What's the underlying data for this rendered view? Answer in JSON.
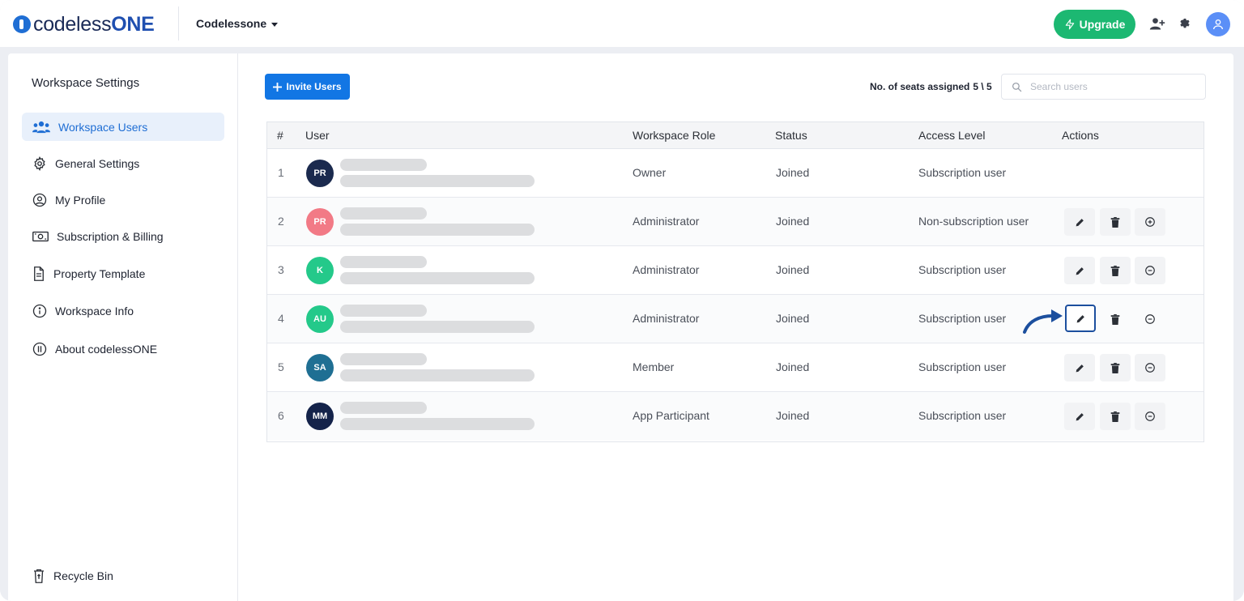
{
  "header": {
    "logo_light": "codeless",
    "logo_bold": "ONE",
    "workspace_name": "Codelessone",
    "upgrade_label": "Upgrade",
    "icons": [
      "add-user-icon",
      "gear-icon",
      "user-avatar-icon"
    ]
  },
  "sidebar": {
    "title": "Workspace Settings",
    "items": [
      {
        "label": "Workspace Users",
        "icon": "users-icon",
        "active": true
      },
      {
        "label": "General Settings",
        "icon": "gear-icon",
        "active": false
      },
      {
        "label": "My Profile",
        "icon": "profile-icon",
        "active": false
      },
      {
        "label": "Subscription & Billing",
        "icon": "money-icon",
        "active": false
      },
      {
        "label": "Property Template",
        "icon": "document-icon",
        "active": false
      },
      {
        "label": "Workspace Info",
        "icon": "info-icon",
        "active": false
      },
      {
        "label": "About codelessONE",
        "icon": "codeless-icon",
        "active": false
      }
    ],
    "recycle_bin": "Recycle Bin"
  },
  "toolbar": {
    "invite_label": "Invite Users",
    "seats_label": "No. of seats assigned",
    "seats_value": "5 \\ 5",
    "search_placeholder": "Search users"
  },
  "table": {
    "columns": [
      "#",
      "User",
      "Workspace Role",
      "Status",
      "Access Level",
      "Actions"
    ],
    "rows": [
      {
        "num": "1",
        "initials": "PR",
        "avatar_color": "#1b2a4e",
        "role": "Owner",
        "status": "Joined",
        "access": "Subscription user",
        "actions": []
      },
      {
        "num": "2",
        "initials": "PR",
        "avatar_color": "#f27a86",
        "role": "Administrator",
        "status": "Joined",
        "access": "Non-subscription user",
        "actions": [
          "edit",
          "delete",
          "add"
        ]
      },
      {
        "num": "3",
        "initials": "K",
        "avatar_color": "#24c98a",
        "role": "Administrator",
        "status": "Joined",
        "access": "Subscription user",
        "actions": [
          "edit",
          "delete",
          "remove"
        ]
      },
      {
        "num": "4",
        "initials": "AU",
        "avatar_color": "#24c98a",
        "role": "Administrator",
        "status": "Joined",
        "access": "Subscription user",
        "actions": [
          "edit",
          "delete",
          "remove"
        ]
      },
      {
        "num": "5",
        "initials": "SA",
        "avatar_color": "#1f6f93",
        "role": "Member",
        "status": "Joined",
        "access": "Subscription user",
        "actions": [
          "edit",
          "delete",
          "remove"
        ]
      },
      {
        "num": "6",
        "initials": "MM",
        "avatar_color": "#14234a",
        "role": "App Participant",
        "status": "Joined",
        "access": "Subscription user",
        "actions": [
          "edit",
          "delete",
          "remove"
        ]
      }
    ]
  },
  "colors": {
    "accent": "#1276e4",
    "upgrade": "#1cb872",
    "highlight_border": "#1c4f9e"
  }
}
